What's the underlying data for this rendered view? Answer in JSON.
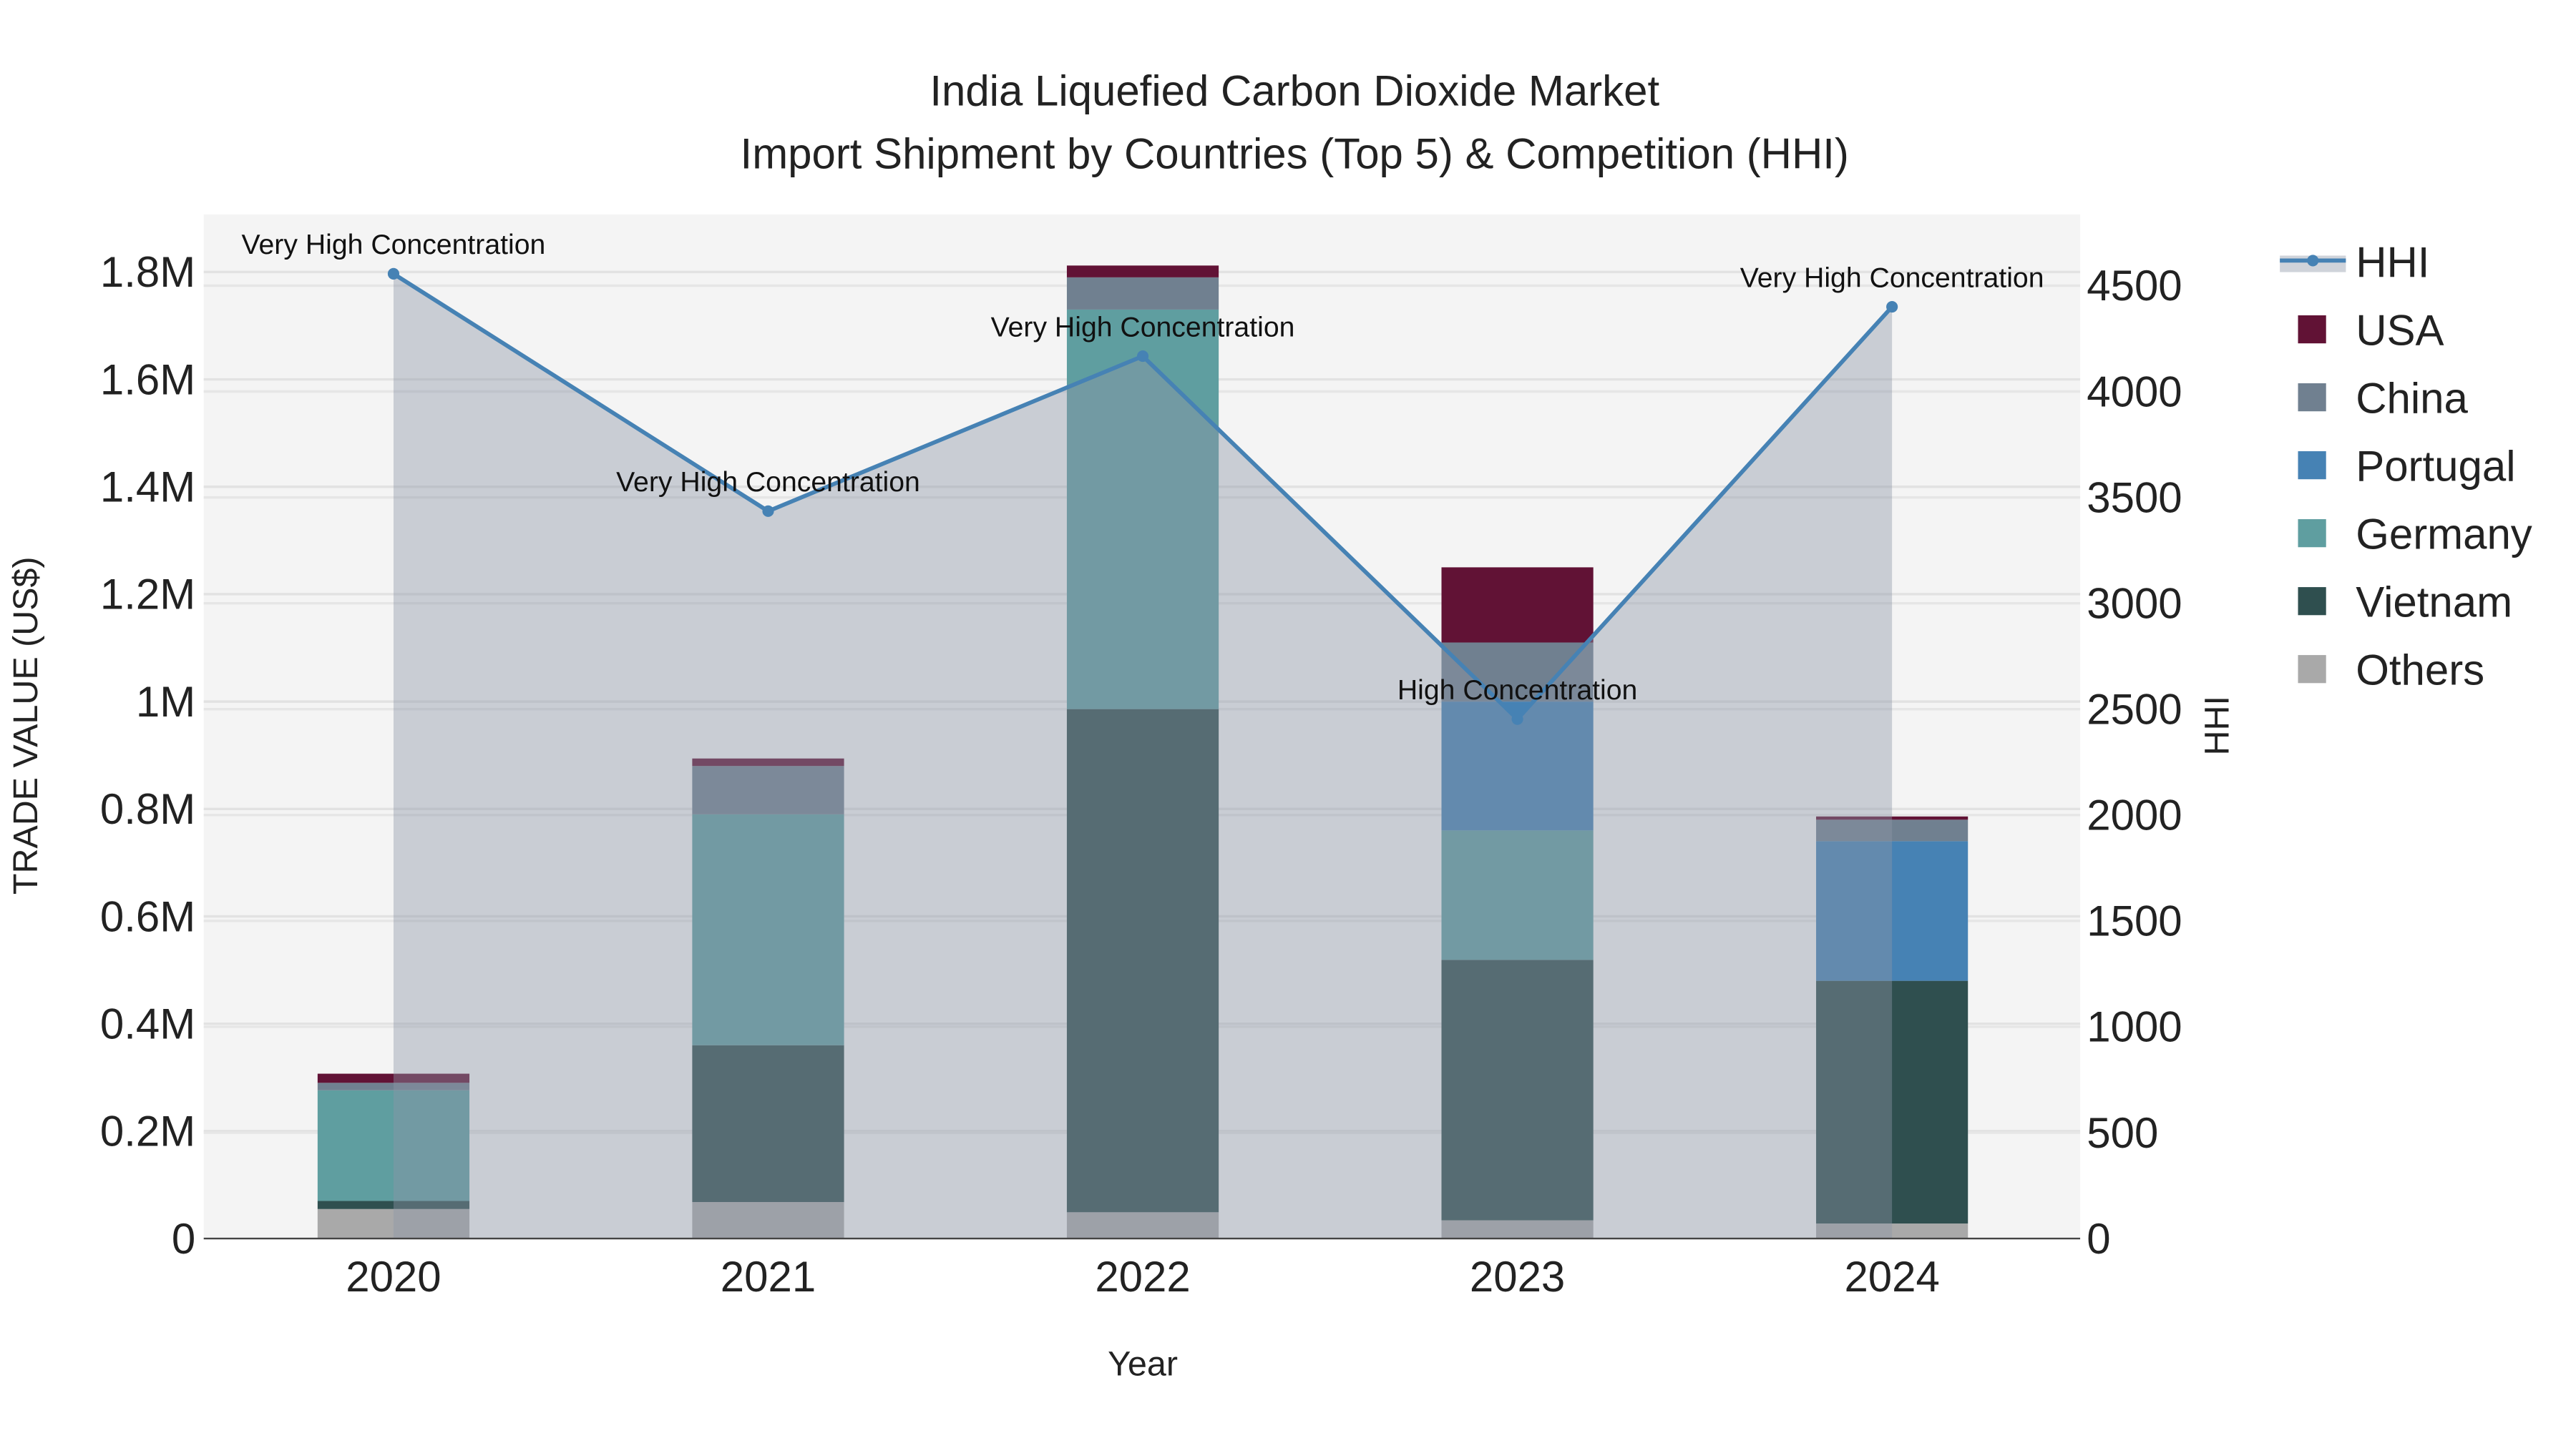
{
  "chart_data": {
    "type": "bar",
    "stacked": true,
    "title": "India Liquefied Carbon Dioxide Market",
    "subtitle": "Import Shipment by Countries (Top 5) & Competition (HHI)",
    "xlabel": "Year",
    "ylabel": "TRADE VALUE (US$)",
    "y2label": "HHI",
    "categories": [
      "2020",
      "2021",
      "2022",
      "2023",
      "2024"
    ],
    "ylim": [
      0,
      1900000
    ],
    "y2lim": [
      0,
      4840
    ],
    "yticks": [
      0,
      200000,
      400000,
      600000,
      800000,
      1000000,
      1200000,
      1400000,
      1600000,
      1800000
    ],
    "ytick_labels": [
      "0",
      "0.2M",
      "0.4M",
      "0.6M",
      "0.8M",
      "1M",
      "1.2M",
      "1.4M",
      "1.6M",
      "1.8M"
    ],
    "y2ticks": [
      0,
      500,
      1000,
      1500,
      2000,
      2500,
      3000,
      3500,
      4000,
      4500
    ],
    "y2tick_labels": [
      "0",
      "500",
      "1000",
      "1500",
      "2000",
      "2500",
      "3000",
      "3500",
      "4000",
      "4500"
    ],
    "grid": true,
    "legend_position": "right",
    "series": [
      {
        "name": "Others",
        "color": "#A9A9A9",
        "values": [
          55000,
          68000,
          49000,
          34000,
          28000
        ]
      },
      {
        "name": "Vietnam",
        "color": "#2F4F4F",
        "values": [
          15000,
          292000,
          937000,
          485000,
          452000
        ]
      },
      {
        "name": "Germany",
        "color": "#5F9EA0",
        "values": [
          206000,
          430000,
          744000,
          241000,
          0
        ]
      },
      {
        "name": "Portugal",
        "color": "#4682B4",
        "values": [
          0,
          0,
          0,
          240000,
          260000
        ]
      },
      {
        "name": "China",
        "color": "#708090",
        "values": [
          14000,
          90000,
          60000,
          110000,
          40000
        ]
      },
      {
        "name": "USA",
        "color": "#611235",
        "values": [
          17000,
          14000,
          22000,
          140000,
          6000
        ]
      }
    ],
    "hhi": {
      "name": "HHI",
      "color": "#4682B4",
      "values": [
        4556,
        3435,
        4167,
        2453,
        4400
      ],
      "annotations": [
        "Very High Concentration",
        "Very High Concentration",
        "Very High Concentration",
        "High Concentration",
        "Very High Concentration"
      ]
    },
    "legend": [
      "HHI",
      "USA",
      "China",
      "Portugal",
      "Germany",
      "Vietnam",
      "Others"
    ]
  }
}
